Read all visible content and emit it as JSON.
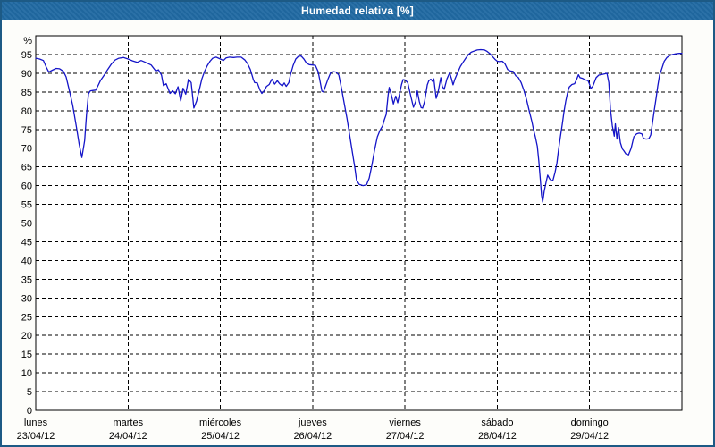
{
  "window": {
    "title": "Humedad relativa [%]"
  },
  "colors": {
    "titlebar_bg": "#2069A2",
    "window_border": "#1D5A85",
    "title_text": "#FFFFFF",
    "page_bg": "#FDFDFA",
    "plot_bg": "#FFFFFF",
    "grid_color": "#000000",
    "axis_text": "#000000",
    "line_color": "#1414C8"
  },
  "chart_data": {
    "type": "line",
    "title": "Humedad relativa [%]",
    "ylabel": "%",
    "xlabel": "",
    "ylim": [
      0,
      100
    ],
    "yticks": [
      0,
      5,
      10,
      15,
      20,
      25,
      30,
      35,
      40,
      45,
      50,
      55,
      60,
      65,
      70,
      75,
      80,
      85,
      90,
      95
    ],
    "grid": "dashed",
    "legend": "none",
    "xlim_hours": [
      0,
      168
    ],
    "x_day_ticks": [
      {
        "name": "lunes",
        "date": "23/04/12",
        "start_hour": 0
      },
      {
        "name": "martes",
        "date": "24/04/12",
        "start_hour": 24
      },
      {
        "name": "miércoles",
        "date": "25/04/12",
        "start_hour": 48
      },
      {
        "name": "jueves",
        "date": "26/04/12",
        "start_hour": 72
      },
      {
        "name": "viernes",
        "date": "27/04/12",
        "start_hour": 96
      },
      {
        "name": "sábado",
        "date": "28/04/12",
        "start_hour": 120
      },
      {
        "name": "domingo",
        "date": "29/04/12",
        "start_hour": 144
      }
    ],
    "series": [
      {
        "name": "Humedad relativa",
        "unit": "%",
        "color": "#1414C8",
        "points_hour_value": [
          [
            0,
            94
          ],
          [
            1,
            93.8
          ],
          [
            2,
            93.4
          ],
          [
            2.8,
            91.5
          ],
          [
            3.4,
            90.3
          ],
          [
            4.3,
            90.8
          ],
          [
            5.3,
            91.3
          ],
          [
            6.2,
            91.2
          ],
          [
            7.2,
            90.5
          ],
          [
            7.9,
            89
          ],
          [
            8.6,
            86
          ],
          [
            9.6,
            81.5
          ],
          [
            10.6,
            75.5
          ],
          [
            11.3,
            71
          ],
          [
            12,
            67.5
          ],
          [
            12.7,
            72
          ],
          [
            13.2,
            79
          ],
          [
            13.7,
            84.5
          ],
          [
            14.2,
            85.3
          ],
          [
            14.9,
            85.4
          ],
          [
            15.6,
            85.5
          ],
          [
            16.1,
            86.5
          ],
          [
            16.8,
            88
          ],
          [
            17.8,
            89.5
          ],
          [
            18.7,
            91
          ],
          [
            19.7,
            92.5
          ],
          [
            20.6,
            93.5
          ],
          [
            21.6,
            94
          ],
          [
            22.8,
            94.2
          ],
          [
            24,
            93.8
          ],
          [
            25.2,
            93.3
          ],
          [
            26.4,
            92.9
          ],
          [
            27.4,
            93.4
          ],
          [
            28.3,
            93
          ],
          [
            30,
            92.2
          ],
          [
            31.2,
            90.6
          ],
          [
            31.9,
            90.9
          ],
          [
            32.7,
            89.5
          ],
          [
            33.2,
            86.7
          ],
          [
            33.9,
            87.2
          ],
          [
            34.9,
            84.6
          ],
          [
            35.6,
            85.3
          ],
          [
            36.3,
            84.5
          ],
          [
            37,
            86.4
          ],
          [
            37.7,
            82.6
          ],
          [
            38.3,
            86
          ],
          [
            39,
            84.4
          ],
          [
            39.7,
            88.4
          ],
          [
            40.4,
            87.5
          ],
          [
            41.1,
            80.7
          ],
          [
            41.8,
            82.5
          ],
          [
            42.5,
            85.5
          ],
          [
            43.2,
            88.5
          ],
          [
            43.9,
            90.5
          ],
          [
            44.6,
            92
          ],
          [
            45.3,
            93.2
          ],
          [
            46,
            94
          ],
          [
            46.9,
            94.3
          ],
          [
            48,
            93.8
          ],
          [
            48.8,
            93.4
          ],
          [
            49.5,
            94.1
          ],
          [
            50.4,
            94.3
          ],
          [
            51.4,
            94.2
          ],
          [
            52.3,
            94.3
          ],
          [
            53.4,
            94.3
          ],
          [
            54.4,
            93.5
          ],
          [
            55.1,
            92.5
          ],
          [
            55.8,
            91
          ],
          [
            56.5,
            88.5
          ],
          [
            56.9,
            87.5
          ],
          [
            57.6,
            87.4
          ],
          [
            58.3,
            85.5
          ],
          [
            58.8,
            84.6
          ],
          [
            59.5,
            85.5
          ],
          [
            60,
            86.5
          ],
          [
            60.7,
            87
          ],
          [
            61.4,
            88.4
          ],
          [
            62.1,
            87.1
          ],
          [
            62.8,
            88
          ],
          [
            63.4,
            87.2
          ],
          [
            64.1,
            86.6
          ],
          [
            64.6,
            87.4
          ],
          [
            65.1,
            86.5
          ],
          [
            65.8,
            87.5
          ],
          [
            66.2,
            89.5
          ],
          [
            66.9,
            92
          ],
          [
            67.6,
            93.8
          ],
          [
            68.3,
            94.5
          ],
          [
            69,
            94.6
          ],
          [
            69.7,
            93.8
          ],
          [
            70.4,
            92.7
          ],
          [
            71.1,
            92.3
          ],
          [
            72,
            92.2
          ],
          [
            72.7,
            92.1
          ],
          [
            73.4,
            90.5
          ],
          [
            73.9,
            88
          ],
          [
            74.4,
            85.2
          ],
          [
            74.8,
            85
          ],
          [
            75.3,
            86.5
          ],
          [
            76,
            88.5
          ],
          [
            76.7,
            90.2
          ],
          [
            77.4,
            90.4
          ],
          [
            78.1,
            90.3
          ],
          [
            78.8,
            89.5
          ],
          [
            79.5,
            86
          ],
          [
            80.2,
            82
          ],
          [
            80.9,
            78
          ],
          [
            81.6,
            73.5
          ],
          [
            82.3,
            69
          ],
          [
            83,
            64.5
          ],
          [
            83.4,
            61.5
          ],
          [
            84.1,
            60.3
          ],
          [
            85.1,
            60
          ],
          [
            86,
            60.2
          ],
          [
            86.7,
            62
          ],
          [
            87.4,
            65.5
          ],
          [
            88.1,
            69.5
          ],
          [
            88.8,
            73
          ],
          [
            89.5,
            74.8
          ],
          [
            90.2,
            76
          ],
          [
            90.6,
            77.5
          ],
          [
            91.1,
            79
          ],
          [
            91.6,
            84
          ],
          [
            91.9,
            86.2
          ],
          [
            92.5,
            84
          ],
          [
            93,
            81.8
          ],
          [
            93.6,
            83.9
          ],
          [
            94.1,
            82.1
          ],
          [
            94.6,
            84.5
          ],
          [
            95.1,
            87
          ],
          [
            95.5,
            88.3
          ],
          [
            96,
            88.2
          ],
          [
            96.7,
            87.5
          ],
          [
            97.1,
            85.7
          ],
          [
            97.6,
            83.5
          ],
          [
            98.2,
            80.9
          ],
          [
            98.8,
            82.5
          ],
          [
            99.2,
            85.3
          ],
          [
            99.7,
            82.5
          ],
          [
            100.2,
            80.8
          ],
          [
            100.6,
            80.7
          ],
          [
            101.1,
            82.5
          ],
          [
            101.8,
            86.9
          ],
          [
            102.2,
            88
          ],
          [
            102.7,
            88.4
          ],
          [
            103.2,
            87.8
          ],
          [
            103.5,
            88.5
          ],
          [
            104.1,
            83.3
          ],
          [
            104.6,
            85
          ],
          [
            105.3,
            88.8
          ],
          [
            105.7,
            86.5
          ],
          [
            106.2,
            85.7
          ],
          [
            106.9,
            88.5
          ],
          [
            107.6,
            90.1
          ],
          [
            108.1,
            88.5
          ],
          [
            108.5,
            86.9
          ],
          [
            109,
            88.5
          ],
          [
            109.7,
            90.2
          ],
          [
            110.4,
            91.8
          ],
          [
            111.1,
            92.9
          ],
          [
            111.8,
            94
          ],
          [
            112.5,
            95
          ],
          [
            113.2,
            95.6
          ],
          [
            113.9,
            95.9
          ],
          [
            114.8,
            96.2
          ],
          [
            115.7,
            96.3
          ],
          [
            116.7,
            96.2
          ],
          [
            117.4,
            95.8
          ],
          [
            118.1,
            95.2
          ],
          [
            118.8,
            94.4
          ],
          [
            119.5,
            93.6
          ],
          [
            120,
            93.2
          ],
          [
            120.6,
            93.1
          ],
          [
            121.3,
            93.2
          ],
          [
            122,
            92.5
          ],
          [
            122.7,
            91
          ],
          [
            123.4,
            90.6
          ],
          [
            124.1,
            90.5
          ],
          [
            124.8,
            89.3
          ],
          [
            125.5,
            88.8
          ],
          [
            126.2,
            87.5
          ],
          [
            126.9,
            85.5
          ],
          [
            127.6,
            83
          ],
          [
            128.3,
            80
          ],
          [
            129,
            77
          ],
          [
            129.4,
            75
          ],
          [
            129.9,
            73
          ],
          [
            130.4,
            70.5
          ],
          [
            130.8,
            66.5
          ],
          [
            131.2,
            61.5
          ],
          [
            131.5,
            57.5
          ],
          [
            131.8,
            55.6
          ],
          [
            132.2,
            58.5
          ],
          [
            132.7,
            61
          ],
          [
            133.1,
            62.8
          ],
          [
            133.6,
            61.8
          ],
          [
            134.1,
            61.3
          ],
          [
            134.5,
            61.5
          ],
          [
            135,
            63.5
          ],
          [
            135.5,
            66
          ],
          [
            135.9,
            69.5
          ],
          [
            136.4,
            73
          ],
          [
            136.9,
            76.5
          ],
          [
            137.3,
            79.5
          ],
          [
            137.8,
            82.5
          ],
          [
            138.3,
            85
          ],
          [
            138.7,
            86.3
          ],
          [
            139.4,
            87
          ],
          [
            140.1,
            87.2
          ],
          [
            140.6,
            88.3
          ],
          [
            141.1,
            89.6
          ],
          [
            141.5,
            88.8
          ],
          [
            142.2,
            88.6
          ],
          [
            142.9,
            88.2
          ],
          [
            143.6,
            88
          ],
          [
            144,
            87
          ],
          [
            144.3,
            85.9
          ],
          [
            144.8,
            86.5
          ],
          [
            145.2,
            87.5
          ],
          [
            145.7,
            88.8
          ],
          [
            146.4,
            89.5
          ],
          [
            147.3,
            89.7
          ],
          [
            148.3,
            89.9
          ],
          [
            148.5,
            90
          ],
          [
            149,
            87.5
          ],
          [
            149.4,
            80.5
          ],
          [
            149.9,
            76
          ],
          [
            150.4,
            73.2
          ],
          [
            150.7,
            76.5
          ],
          [
            151.1,
            72.4
          ],
          [
            151.5,
            75.5
          ],
          [
            152,
            71.5
          ],
          [
            152.5,
            69.8
          ],
          [
            152.9,
            69.3
          ],
          [
            153.4,
            68.5
          ],
          [
            154.1,
            68.2
          ],
          [
            154.8,
            70
          ],
          [
            155.5,
            73
          ],
          [
            156.2,
            73.8
          ],
          [
            156.9,
            74
          ],
          [
            157.6,
            73.8
          ],
          [
            158,
            72.6
          ],
          [
            158.7,
            72.4
          ],
          [
            159.4,
            72.5
          ],
          [
            159.9,
            73.5
          ],
          [
            160.3,
            76.5
          ],
          [
            160.8,
            80
          ],
          [
            161.3,
            83.5
          ],
          [
            161.7,
            86.5
          ],
          [
            162.2,
            89.5
          ],
          [
            162.7,
            91
          ],
          [
            163.4,
            93.2
          ],
          [
            164.1,
            94.2
          ],
          [
            164.8,
            94.7
          ],
          [
            165.5,
            95
          ],
          [
            166.4,
            95.2
          ],
          [
            167.3,
            95.3
          ],
          [
            168,
            95.3
          ]
        ]
      }
    ]
  }
}
